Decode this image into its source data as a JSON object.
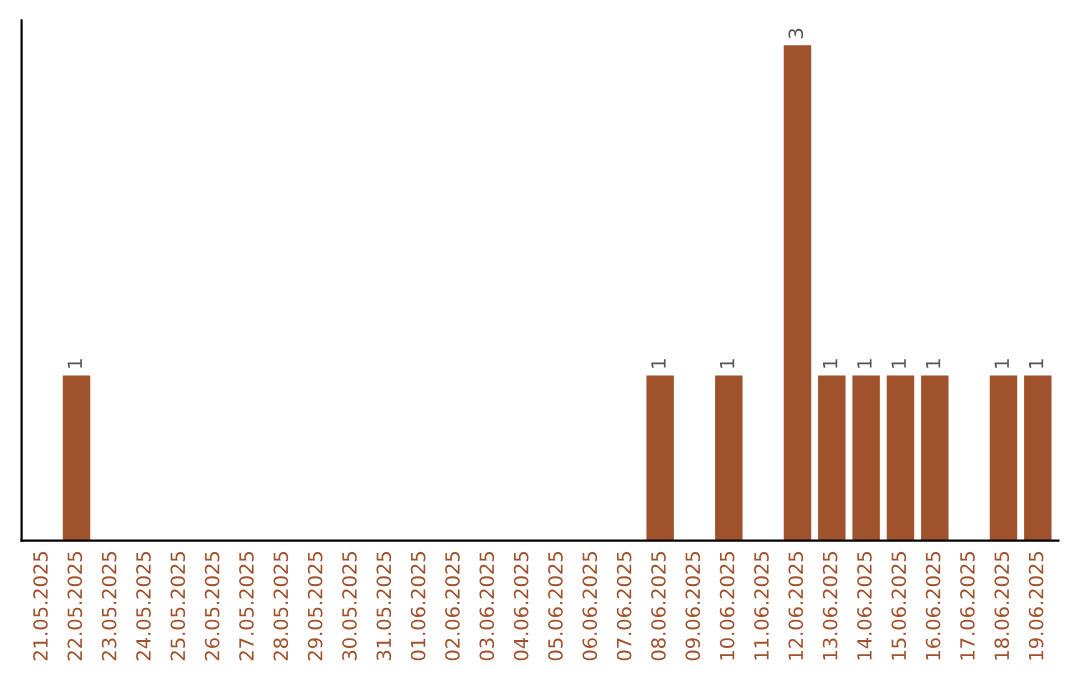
{
  "chart_data": {
    "type": "bar",
    "categories": [
      "21.05.2025",
      "22.05.2025",
      "23.05.2025",
      "24.05.2025",
      "25.05.2025",
      "26.05.2025",
      "27.05.2025",
      "28.05.2025",
      "29.05.2025",
      "30.05.2025",
      "31.05.2025",
      "01.06.2025",
      "02.06.2025",
      "03.06.2025",
      "04.06.2025",
      "05.06.2025",
      "06.06.2025",
      "07.06.2025",
      "08.06.2025",
      "09.06.2025",
      "10.06.2025",
      "11.06.2025",
      "12.06.2025",
      "13.06.2025",
      "14.06.2025",
      "15.06.2025",
      "16.06.2025",
      "17.06.2025",
      "18.06.2025",
      "19.06.2025"
    ],
    "values": [
      0,
      1,
      0,
      0,
      0,
      0,
      0,
      0,
      0,
      0,
      0,
      0,
      0,
      0,
      0,
      0,
      0,
      0,
      1,
      0,
      1,
      0,
      3,
      1,
      1,
      1,
      1,
      0,
      1,
      1
    ],
    "value_labels": [
      null,
      "1",
      null,
      null,
      null,
      null,
      null,
      null,
      null,
      null,
      null,
      null,
      null,
      null,
      null,
      null,
      null,
      null,
      "1",
      null,
      "1",
      null,
      "3",
      "1",
      "1",
      "1",
      "1",
      null,
      "1",
      "1"
    ],
    "color": "#a0522d",
    "tick_labels": "x",
    "grid": false,
    "legend": false
  }
}
